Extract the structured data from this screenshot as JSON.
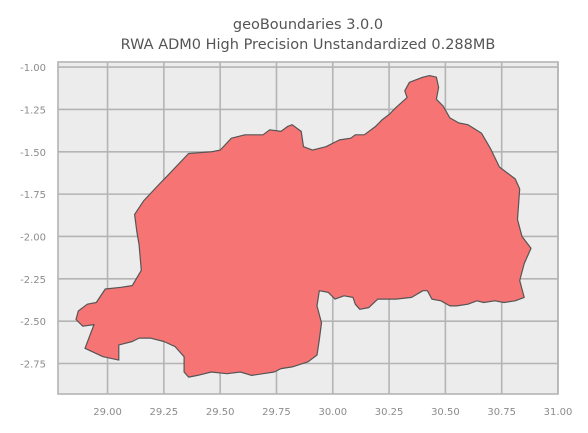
{
  "title": {
    "line1": "geoBoundaries 3.0.0",
    "line2": "RWA ADM0 High Precision Unstandardized 0.288MB"
  },
  "map": {
    "region": "RWA ADM0",
    "fill_color": "#f77474",
    "stroke_color": "#555555",
    "background_color": "#ececec",
    "grid": true,
    "xlim": [
      28.78,
      31.0
    ],
    "ylim": [
      -2.93,
      -0.97
    ],
    "x_ticks": [
      "29.00",
      "29.25",
      "29.50",
      "29.75",
      "30.00",
      "30.25",
      "30.50",
      "30.75",
      "31.00"
    ],
    "y_ticks": [
      "-1.00",
      "-1.25",
      "-1.50",
      "-1.75",
      "-2.00",
      "-2.25",
      "-2.50",
      "-2.75"
    ],
    "boundary": [
      [
        28.94,
        -2.52
      ],
      [
        28.89,
        -2.53
      ],
      [
        28.86,
        -2.49
      ],
      [
        28.87,
        -2.44
      ],
      [
        28.91,
        -2.4
      ],
      [
        28.95,
        -2.39
      ],
      [
        28.99,
        -2.31
      ],
      [
        29.06,
        -2.3
      ],
      [
        29.11,
        -2.29
      ],
      [
        29.15,
        -2.2
      ],
      [
        29.14,
        -2.05
      ],
      [
        29.13,
        -1.97
      ],
      [
        29.12,
        -1.87
      ],
      [
        29.16,
        -1.79
      ],
      [
        29.23,
        -1.69
      ],
      [
        29.26,
        -1.65
      ],
      [
        29.36,
        -1.51
      ],
      [
        29.46,
        -1.5
      ],
      [
        29.5,
        -1.49
      ],
      [
        29.55,
        -1.42
      ],
      [
        29.61,
        -1.4
      ],
      [
        29.65,
        -1.4
      ],
      [
        29.69,
        -1.4
      ],
      [
        29.72,
        -1.37
      ],
      [
        29.77,
        -1.38
      ],
      [
        29.8,
        -1.35
      ],
      [
        29.82,
        -1.34
      ],
      [
        29.84,
        -1.36
      ],
      [
        29.86,
        -1.38
      ],
      [
        29.87,
        -1.47
      ],
      [
        29.91,
        -1.49
      ],
      [
        29.97,
        -1.47
      ],
      [
        30.03,
        -1.43
      ],
      [
        30.08,
        -1.42
      ],
      [
        30.1,
        -1.4
      ],
      [
        30.14,
        -1.4
      ],
      [
        30.19,
        -1.35
      ],
      [
        30.22,
        -1.31
      ],
      [
        30.25,
        -1.28
      ],
      [
        30.28,
        -1.24
      ],
      [
        30.33,
        -1.18
      ],
      [
        30.32,
        -1.14
      ],
      [
        30.34,
        -1.09
      ],
      [
        30.4,
        -1.06
      ],
      [
        30.43,
        -1.05
      ],
      [
        30.46,
        -1.06
      ],
      [
        30.47,
        -1.12
      ],
      [
        30.46,
        -1.19
      ],
      [
        30.49,
        -1.23
      ],
      [
        30.52,
        -1.3
      ],
      [
        30.56,
        -1.33
      ],
      [
        30.6,
        -1.34
      ],
      [
        30.66,
        -1.39
      ],
      [
        30.7,
        -1.48
      ],
      [
        30.74,
        -1.59
      ],
      [
        30.81,
        -1.66
      ],
      [
        30.83,
        -1.72
      ],
      [
        30.82,
        -1.9
      ],
      [
        30.84,
        -2.0
      ],
      [
        30.88,
        -2.07
      ],
      [
        30.85,
        -2.16
      ],
      [
        30.83,
        -2.26
      ],
      [
        30.85,
        -2.36
      ],
      [
        30.81,
        -2.38
      ],
      [
        30.76,
        -2.39
      ],
      [
        30.72,
        -2.38
      ],
      [
        30.67,
        -2.39
      ],
      [
        30.64,
        -2.38
      ],
      [
        30.6,
        -2.4
      ],
      [
        30.55,
        -2.41
      ],
      [
        30.52,
        -2.41
      ],
      [
        30.48,
        -2.38
      ],
      [
        30.44,
        -2.37
      ],
      [
        30.42,
        -2.32
      ],
      [
        30.4,
        -2.32
      ],
      [
        30.35,
        -2.36
      ],
      [
        30.28,
        -2.37
      ],
      [
        30.2,
        -2.37
      ],
      [
        30.16,
        -2.42
      ],
      [
        30.12,
        -2.43
      ],
      [
        30.1,
        -2.4
      ],
      [
        30.09,
        -2.36
      ],
      [
        30.05,
        -2.35
      ],
      [
        30.01,
        -2.37
      ],
      [
        29.98,
        -2.33
      ],
      [
        29.94,
        -2.32
      ],
      [
        29.93,
        -2.41
      ],
      [
        29.95,
        -2.51
      ],
      [
        29.94,
        -2.61
      ],
      [
        29.93,
        -2.7
      ],
      [
        29.89,
        -2.74
      ],
      [
        29.82,
        -2.77
      ],
      [
        29.77,
        -2.78
      ],
      [
        29.74,
        -2.8
      ],
      [
        29.69,
        -2.81
      ],
      [
        29.64,
        -2.82
      ],
      [
        29.59,
        -2.8
      ],
      [
        29.53,
        -2.81
      ],
      [
        29.46,
        -2.8
      ],
      [
        29.4,
        -2.82
      ],
      [
        29.36,
        -2.83
      ],
      [
        29.34,
        -2.8
      ],
      [
        29.34,
        -2.71
      ],
      [
        29.3,
        -2.65
      ],
      [
        29.25,
        -2.62
      ],
      [
        29.19,
        -2.6
      ],
      [
        29.14,
        -2.6
      ],
      [
        29.11,
        -2.62
      ],
      [
        29.05,
        -2.64
      ],
      [
        29.05,
        -2.73
      ],
      [
        28.98,
        -2.71
      ],
      [
        28.9,
        -2.66
      ]
    ]
  }
}
